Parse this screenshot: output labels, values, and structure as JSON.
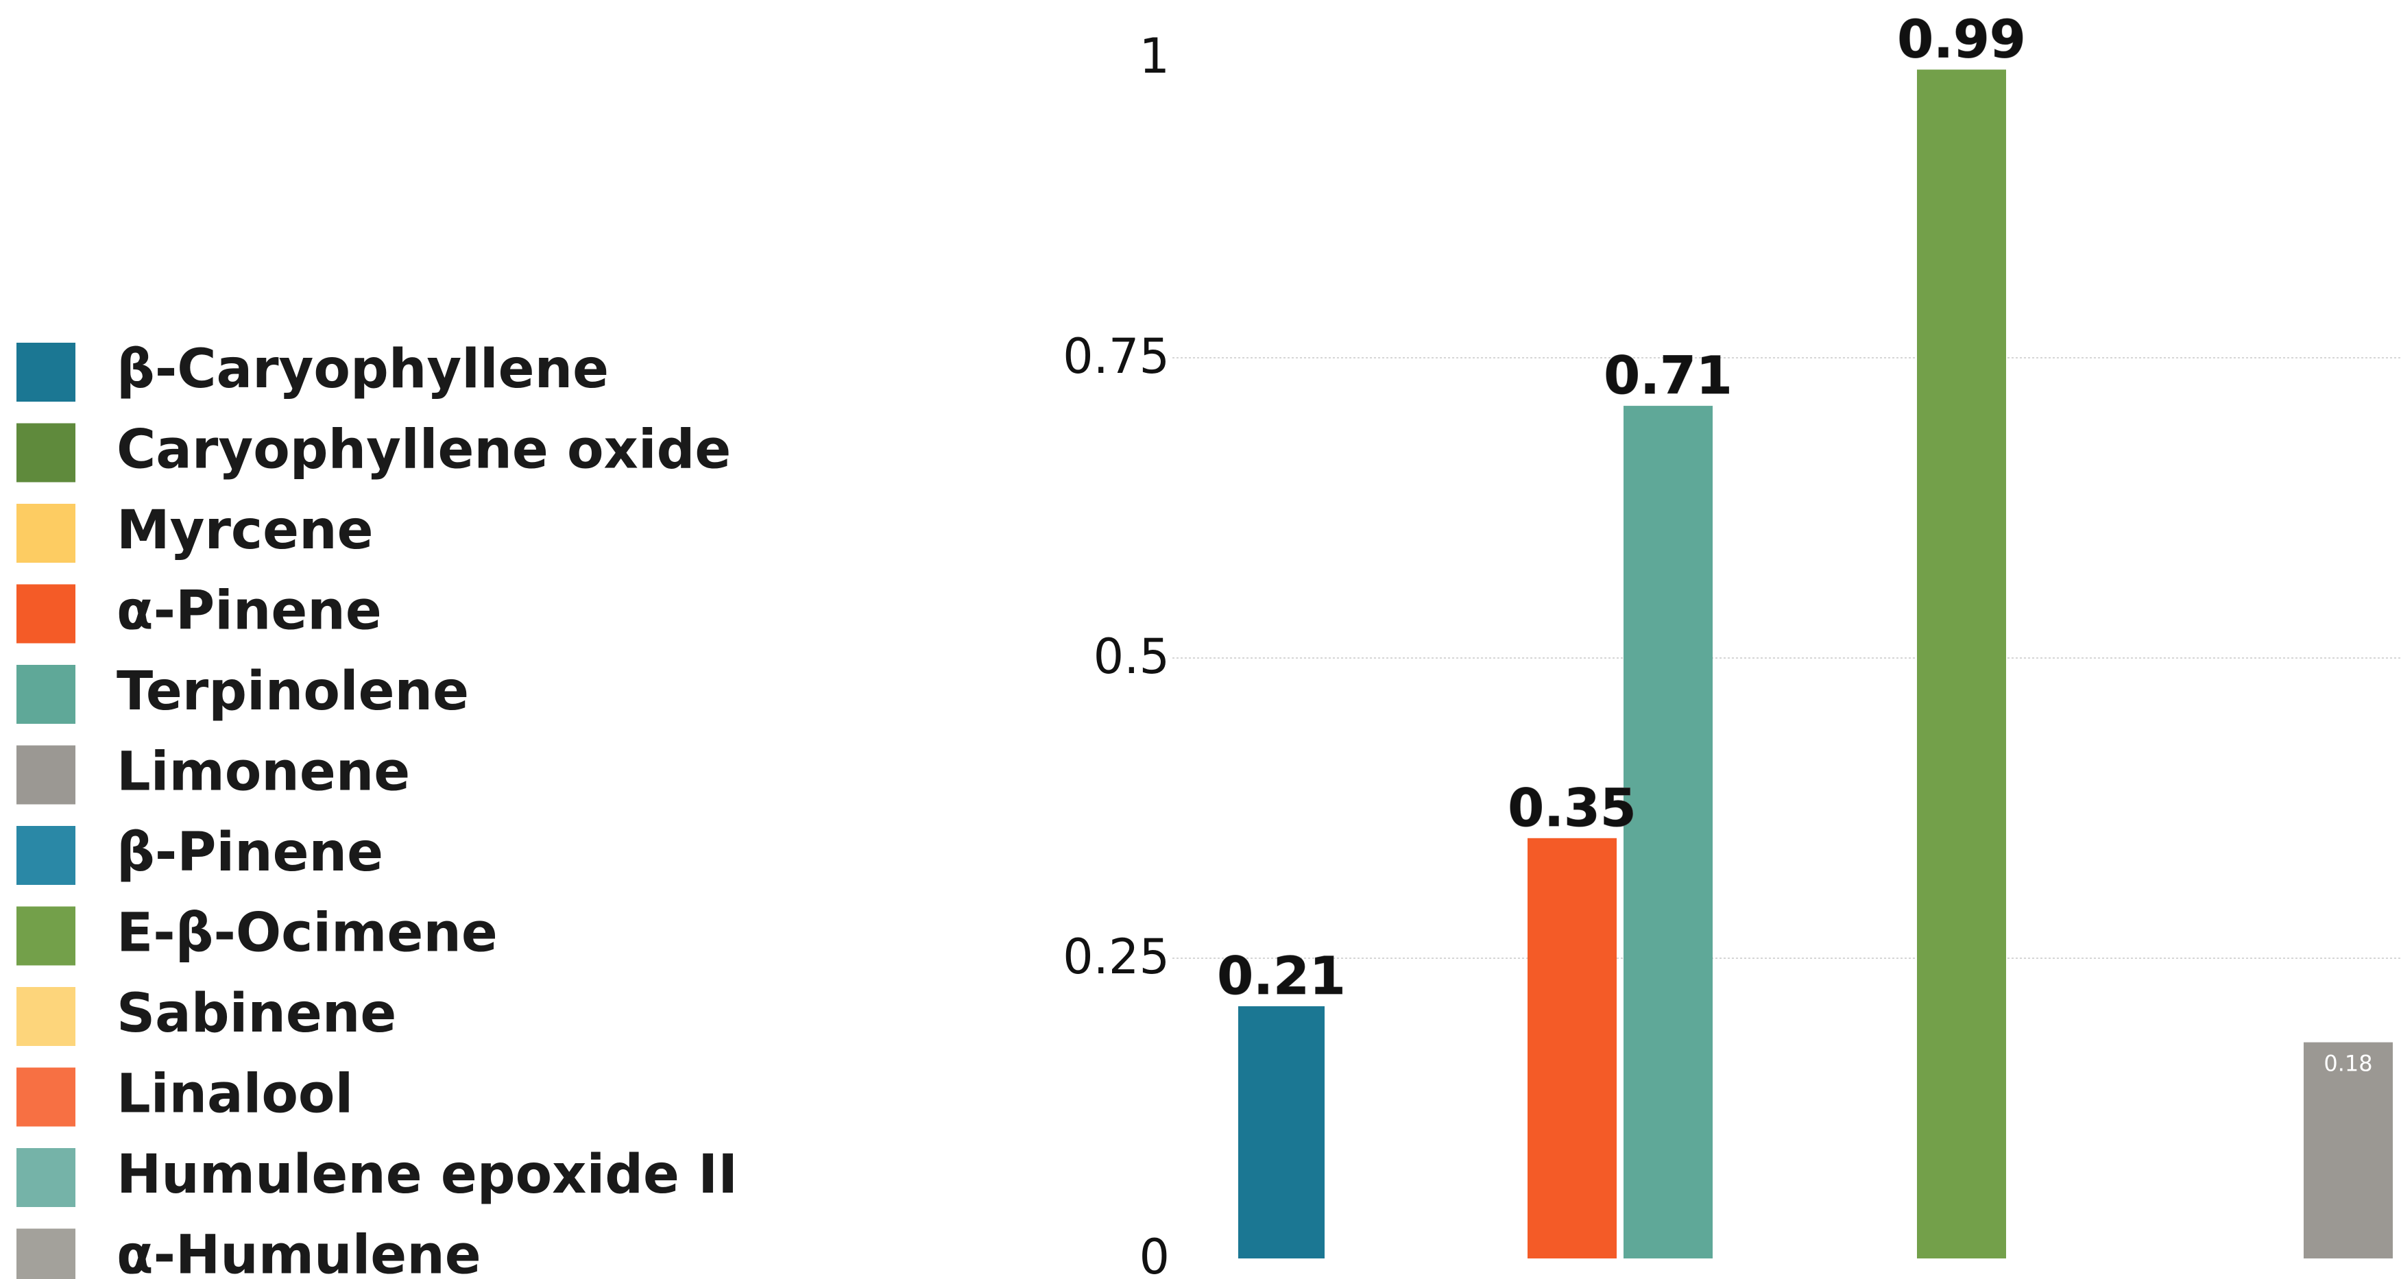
{
  "chart_data": {
    "type": "bar",
    "title": "",
    "xlabel": "",
    "ylabel": "",
    "ylim": [
      0,
      1.0
    ],
    "yticks": [
      0,
      0.25,
      0.5,
      0.75,
      1
    ],
    "ytick_labels": [
      "0",
      "0.25",
      "0.5",
      "0.75",
      "1"
    ],
    "grid": "horizontal dotted lines at 0.25, 0.5, 0.75",
    "legend_position": "left",
    "legend": [
      {
        "name": "β-Caryophyllene",
        "color": "#1b7793"
      },
      {
        "name": "Caryophyllene oxide",
        "color": "#5f8a3c"
      },
      {
        "name": "Myrcene",
        "color": "#fdcc62"
      },
      {
        "name": "α-Pinene",
        "color": "#f45b27"
      },
      {
        "name": "Terpinolene",
        "color": "#5fa898"
      },
      {
        "name": "Limonene",
        "color": "#9b9893"
      },
      {
        "name": "β-Pinene",
        "color": "#2a88a6"
      },
      {
        "name": "E-β-Ocimene",
        "color": "#73a04a"
      },
      {
        "name": "Sabinene",
        "color": "#fdd57b"
      },
      {
        "name": "Linalool",
        "color": "#f77043"
      },
      {
        "name": "Humulene epoxide II",
        "color": "#75b3a8"
      },
      {
        "name": "α-Humulene",
        "color": "#a3a19b"
      }
    ],
    "bars": [
      {
        "series": "β-Caryophyllene",
        "value": 0.21,
        "label": "0.21",
        "color": "#1b7793"
      },
      {
        "series": "α-Pinene",
        "value": 0.35,
        "label": "0.35",
        "color": "#f45b27"
      },
      {
        "series": "Terpinolene",
        "value": 0.71,
        "label": "0.71",
        "color": "#5fa898"
      },
      {
        "series": "E-β-Ocimene",
        "value": 0.99,
        "label": "0.99",
        "color": "#73a04a"
      },
      {
        "series": "Limonene",
        "value": 0.18,
        "label": "0.18",
        "color": "#9b9893"
      }
    ]
  }
}
